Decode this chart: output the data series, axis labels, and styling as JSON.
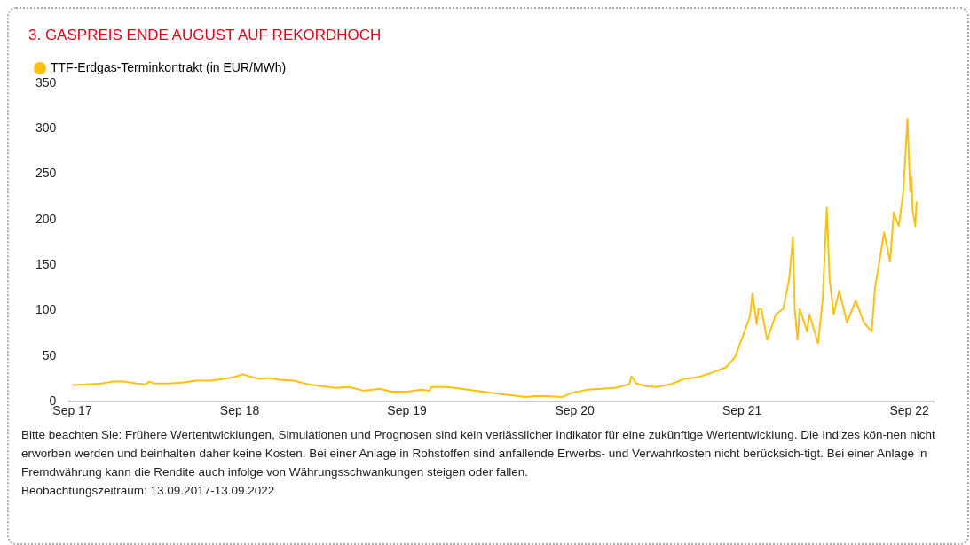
{
  "chart_data": {
    "type": "line",
    "title": "3.    GASPREIS ENDE AUGUST AUF REKORDHOCH",
    "series": [
      {
        "name": "TTF-Erdgas-Terminkontrakt (in EUR/MWh)",
        "color": "#fbc012",
        "x": [
          "2017-09-13",
          "2017-10-15",
          "2017-11-15",
          "2017-12-10",
          "2018-01-05",
          "2018-02-01",
          "2018-02-20",
          "2018-02-28",
          "2018-03-10",
          "2018-04-10",
          "2018-05-10",
          "2018-06-10",
          "2018-07-10",
          "2018-08-10",
          "2018-09-01",
          "2018-09-20",
          "2018-10-10",
          "2018-10-25",
          "2018-11-15",
          "2018-12-10",
          "2019-01-10",
          "2019-02-10",
          "2019-03-10",
          "2019-04-10",
          "2019-05-10",
          "2019-06-10",
          "2019-07-01",
          "2019-07-15",
          "2019-08-10",
          "2019-09-13",
          "2019-10-15",
          "2019-11-01",
          "2019-11-05",
          "2019-12-10",
          "2020-01-10",
          "2020-02-10",
          "2020-03-10",
          "2020-04-10",
          "2020-05-30",
          "2020-06-20",
          "2020-07-15",
          "2020-08-15",
          "2020-09-10",
          "2020-10-10",
          "2020-11-10",
          "2020-12-10",
          "2021-01-10",
          "2021-01-15",
          "2021-01-25",
          "2021-02-15",
          "2021-03-10",
          "2021-04-10",
          "2021-05-10",
          "2021-06-10",
          "2021-07-10",
          "2021-08-10",
          "2021-08-29",
          "2021-09-30",
          "2021-10-06",
          "2021-10-15",
          "2021-10-19",
          "2021-10-25",
          "2021-11-07",
          "2021-11-26",
          "2021-12-12",
          "2021-12-25",
          "2022-01-02",
          "2022-01-06",
          "2022-01-12",
          "2022-01-17",
          "2022-02-02",
          "2022-02-07",
          "2022-02-26",
          "2022-03-08",
          "2022-03-17",
          "2022-03-23",
          "2022-04-01",
          "2022-04-13",
          "2022-04-30",
          "2022-05-19",
          "2022-06-06",
          "2022-06-23",
          "2022-06-30",
          "2022-07-20",
          "2022-08-02",
          "2022-08-10",
          "2022-08-21",
          "2022-08-31",
          "2022-09-09",
          "2022-09-15",
          "2022-09-18",
          "2022-09-20",
          "2022-09-26",
          "2022-09-29"
        ],
        "values": [
          18,
          19,
          20,
          22,
          22,
          20,
          19,
          22,
          20,
          20,
          21,
          23,
          23,
          25,
          27,
          30,
          27,
          25,
          26,
          24,
          23,
          19,
          17,
          15,
          16,
          12,
          13,
          14,
          11,
          11,
          13,
          12,
          16,
          16,
          14,
          12,
          10,
          8,
          5,
          6,
          6,
          5,
          10,
          13,
          14,
          15,
          19,
          28,
          20,
          17,
          16,
          19,
          25,
          27,
          32,
          38,
          49,
          93,
          119,
          85,
          102,
          102,
          68,
          96,
          102,
          135,
          181,
          102,
          68,
          102,
          77,
          96,
          64,
          112,
          213,
          135,
          96,
          122,
          87,
          111,
          87,
          77,
          124,
          186,
          154,
          208,
          193,
          231,
          311,
          231,
          247,
          212,
          193,
          220
        ]
      }
    ],
    "xlim": [
      "2017-09-05",
      "2022-11-05"
    ],
    "xticks": [
      {
        "value": "2017-09-13",
        "label": "Sep 17"
      },
      {
        "value": "2018-09-13",
        "label": "Sep 18"
      },
      {
        "value": "2019-09-13",
        "label": "Sep 19"
      },
      {
        "value": "2020-09-13",
        "label": "Sep 20"
      },
      {
        "value": "2021-09-13",
        "label": "Sep 21"
      },
      {
        "value": "2022-09-13",
        "label": "Sep 22"
      }
    ],
    "ylim": [
      0,
      350
    ],
    "yticks": [
      0,
      50,
      100,
      150,
      200,
      250,
      300,
      350
    ],
    "grid": false,
    "legend": "top left",
    "marker": "none",
    "line_style": "solid",
    "annotations": [
      "Bitte beachten Sie: Frühere Wertentwicklungen, Simulationen und Prognosen sind kein verlässlicher Indikator für eine zukünftige Wertentwicklung. Die Indizes kön-nen nicht erworben werden und beinhalten daher keine Kosten. Bei einer Anlage in Rohstoffen sind anfallende Erwerbs- und Verwahrkosten nicht berücksich-tigt. Bei einer Anlage in Fremdwährung kann die Rendite auch infolge von Währungsschwankungen steigen oder fallen.",
      "Beobachtungszeitraum: 13.09.2017-13.09.2022"
    ]
  }
}
